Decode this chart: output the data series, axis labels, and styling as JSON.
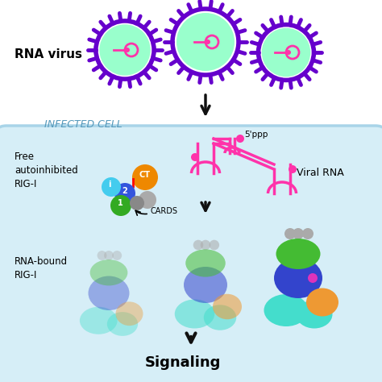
{
  "bg_color": "#ffffff",
  "cell_bg": "#d6eef7",
  "cell_border": "#a8d4e8",
  "virus_border": "#6600cc",
  "virus_inner": "#99ffcc",
  "virus_inner2": "#66ddaa",
  "rna_color": "#ff33aa",
  "arrow_color": "#111111",
  "text_rna_virus": "RNA virus",
  "text_infected": "INFECTED CELL",
  "text_free": "Free\nautoinhibited\nRIG-I",
  "text_viral_rna": "Viral RNA",
  "text_5ppp": "5'ppp",
  "text_cards": "CARDS",
  "text_rna_bound": "RNA-bound\nRIG-I",
  "text_signaling": "Signaling",
  "signaling_bold": true,
  "card_i_color": "#44ccee",
  "card_2_color": "#3355dd",
  "card_1_color": "#33aa22",
  "card_ct_color": "#ee8800",
  "card_gray1": "#888888",
  "card_gray2": "#aaaaaa",
  "protein_cyan": "#44ddcc",
  "protein_blue": "#3344cc",
  "protein_green": "#44bb33",
  "protein_orange": "#ee9933",
  "protein_gray": "#aaaaaa",
  "protein_magenta": "#dd33bb"
}
